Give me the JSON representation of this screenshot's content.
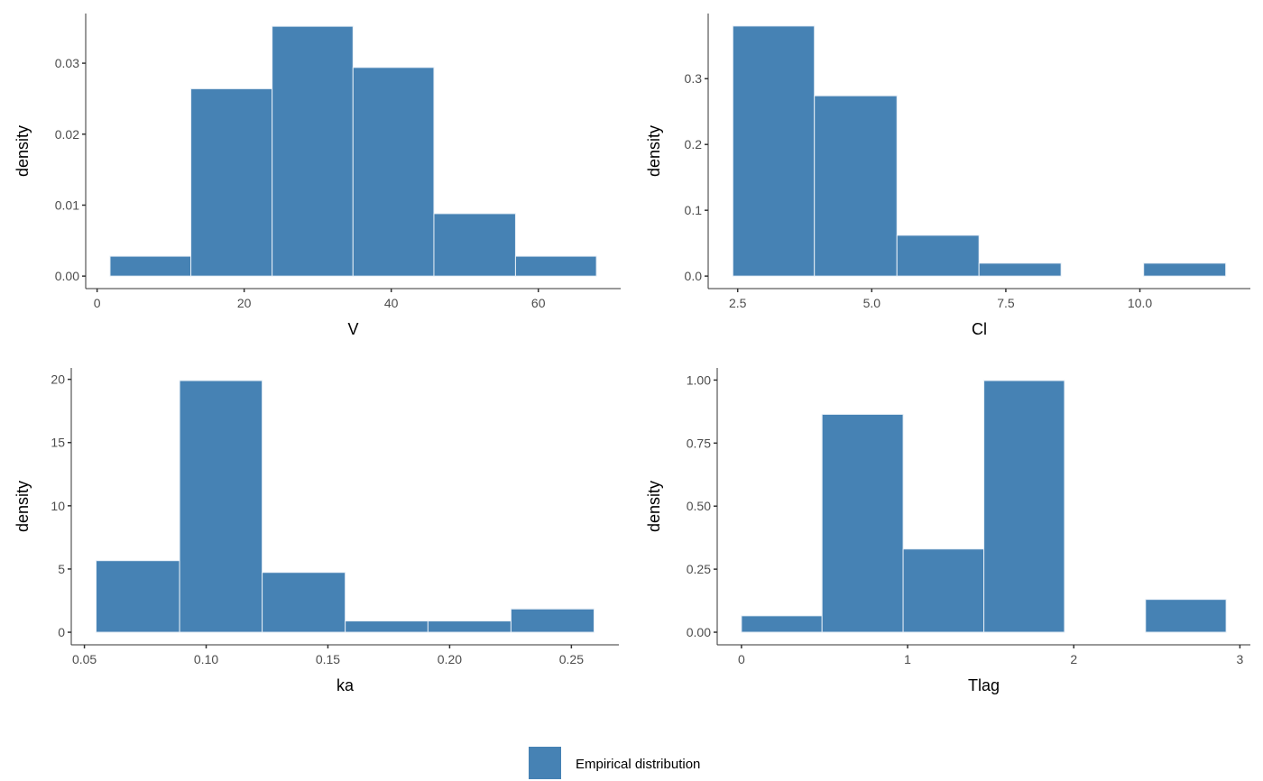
{
  "colors": {
    "bar_fill": "#4682B4",
    "bar_outline": "#E6EEF6",
    "axis": "#333333",
    "tick_text": "#4D4D4D"
  },
  "legend": {
    "label": "Empirical distribution",
    "position": "bottom"
  },
  "chart_data": [
    {
      "type": "bar",
      "subtype": "histogram",
      "xlabel": "V",
      "ylabel": "density",
      "bin_edges": [
        1.76,
        12.75,
        23.8,
        34.8,
        45.8,
        56.9,
        67.9
      ],
      "values": [
        0.0028,
        0.0264,
        0.0352,
        0.0294,
        0.0088,
        0.0028
      ],
      "xlim": [
        -1.55,
        71.2
      ],
      "ylim": [
        -0.00176,
        0.037
      ],
      "xticks": [
        0,
        20,
        40,
        60
      ],
      "xtick_labels": [
        "0",
        "20",
        "40",
        "60"
      ],
      "yticks": [
        0,
        0.01,
        0.02,
        0.03
      ],
      "ytick_labels": [
        "0.00",
        "0.01",
        "0.02",
        "0.03"
      ],
      "grid": false
    },
    {
      "type": "bar",
      "subtype": "histogram",
      "xlabel": "Cl",
      "ylabel": "density",
      "bin_edges": [
        2.41,
        3.93,
        5.47,
        7.0,
        8.53,
        10.07,
        11.6
      ],
      "values": [
        0.38,
        0.274,
        0.062,
        0.0196,
        0,
        0.0196
      ],
      "xlim": [
        1.95,
        12.06
      ],
      "ylim": [
        -0.019,
        0.399
      ],
      "xticks": [
        2.5,
        5.0,
        7.5,
        10.0
      ],
      "xtick_labels": [
        "2.5",
        "5.0",
        "7.5",
        "10.0"
      ],
      "yticks": [
        0,
        0.1,
        0.2,
        0.3
      ],
      "ytick_labels": [
        "0.0",
        "0.1",
        "0.2",
        "0.3"
      ],
      "grid": false
    },
    {
      "type": "bar",
      "subtype": "histogram",
      "xlabel": "ka",
      "ylabel": "density",
      "bin_edges": [
        0.0548,
        0.0891,
        0.123,
        0.1571,
        0.1911,
        0.2252,
        0.2593
      ],
      "values": [
        5.66,
        19.9,
        4.73,
        0.89,
        0.89,
        1.84
      ],
      "xlim": [
        0.0446,
        0.2695
      ],
      "ylim": [
        -0.995,
        20.9
      ],
      "xticks": [
        0.05,
        0.1,
        0.15,
        0.2,
        0.25
      ],
      "xtick_labels": [
        "0.05",
        "0.10",
        "0.15",
        "0.20",
        "0.25"
      ],
      "yticks": [
        0,
        5,
        10,
        15,
        20
      ],
      "ytick_labels": [
        "0",
        "5",
        "10",
        "15",
        "20"
      ],
      "grid": false
    },
    {
      "type": "bar",
      "subtype": "histogram",
      "xlabel": "Tlag",
      "ylabel": "density",
      "bin_edges": [
        0,
        0.485,
        0.973,
        1.459,
        1.944,
        2.432,
        2.917
      ],
      "values": [
        0.065,
        0.864,
        0.33,
        0.998,
        0,
        0.13
      ],
      "xlim": [
        -0.146,
        3.063
      ],
      "ylim": [
        -0.05,
        1.048
      ],
      "xticks": [
        0,
        1,
        2,
        3
      ],
      "xtick_labels": [
        "0",
        "1",
        "2",
        "3"
      ],
      "yticks": [
        0,
        0.25,
        0.5,
        0.75,
        1.0
      ],
      "ytick_labels": [
        "0.00",
        "0.25",
        "0.50",
        "0.75",
        "1.00"
      ],
      "grid": false
    }
  ]
}
